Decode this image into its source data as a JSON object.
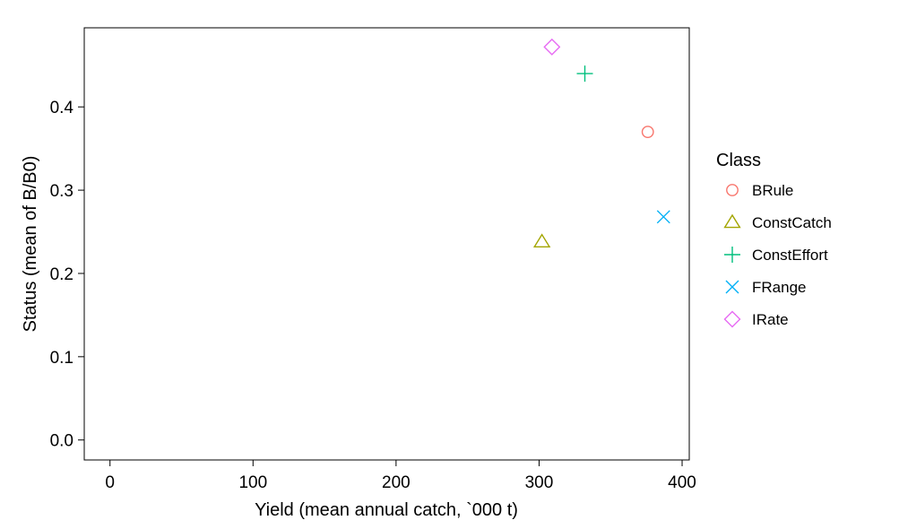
{
  "chart_data": {
    "type": "scatter",
    "title": "",
    "xlabel": "Yield (mean annual catch, `000 t)",
    "ylabel": "Status (mean of B/B0)",
    "xlim": [
      -18,
      405
    ],
    "ylim": [
      -0.024,
      0.495
    ],
    "x_ticks": [
      0,
      100,
      200,
      300,
      400
    ],
    "x_tick_labels": [
      "0",
      "100",
      "200",
      "300",
      "400"
    ],
    "y_ticks": [
      0.0,
      0.1,
      0.2,
      0.3,
      0.4
    ],
    "y_tick_labels": [
      "0.0",
      "0.1",
      "0.2",
      "0.3",
      "0.4"
    ],
    "grid": false,
    "legend": {
      "title": "Class",
      "placement": "right"
    },
    "series": [
      {
        "name": "BRule",
        "shape": "circle",
        "color": "#F8766D",
        "x": [
          376
        ],
        "y": [
          0.37
        ]
      },
      {
        "name": "ConstCatch",
        "shape": "triangle",
        "color": "#A3A500",
        "x": [
          302
        ],
        "y": [
          0.238
        ]
      },
      {
        "name": "ConstEffort",
        "shape": "plus",
        "color": "#00BF7D",
        "x": [
          332
        ],
        "y": [
          0.44
        ]
      },
      {
        "name": "FRange",
        "shape": "cross",
        "color": "#00B0F6",
        "x": [
          387
        ],
        "y": [
          0.268
        ]
      },
      {
        "name": "IRate",
        "shape": "diamond",
        "color": "#E76BF3",
        "x": [
          309
        ],
        "y": [
          0.472
        ]
      }
    ]
  }
}
